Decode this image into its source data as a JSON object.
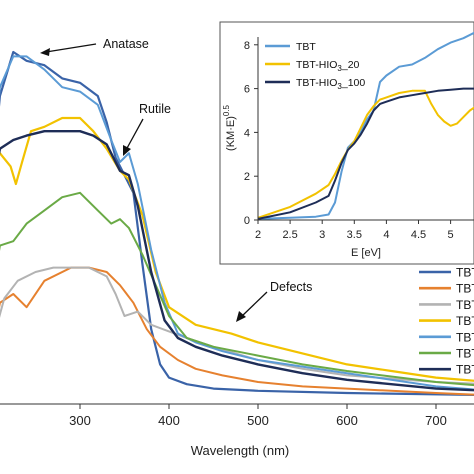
{
  "colors": {
    "dark_blue": "#3a63a8",
    "orange": "#e6812f",
    "gray": "#b3b3b3",
    "yellow": "#f2c200",
    "light_blue": "#5b9bd5",
    "green": "#6aaa46",
    "navy": "#1e2d57"
  },
  "chart_data": [
    {
      "type": "line",
      "xlabel": "Wavelength (nm)",
      "ylabel": "",
      "xlim": [
        200,
        760
      ],
      "ylim": [
        0,
        1
      ],
      "x_ticks": [
        "300",
        "400",
        "500",
        "600",
        "700"
      ],
      "x_tick_values": [
        300,
        400,
        500,
        600,
        700
      ],
      "grid": false,
      "legend": "right",
      "annotations": [
        {
          "text": "Anatase",
          "x": 228,
          "y": 0.805
        },
        {
          "text": "Rutile",
          "x": 355,
          "y": 0.56
        },
        {
          "text": "Defects",
          "x": 470,
          "y": 0.16
        }
      ],
      "series": [
        {
          "name": "TBT",
          "color": "dark_blue",
          "width": 2.2,
          "points": [
            [
              200,
              0.48
            ],
            [
              210,
              0.7
            ],
            [
              225,
              0.8
            ],
            [
              240,
              0.78
            ],
            [
              260,
              0.77
            ],
            [
              280,
              0.74
            ],
            [
              300,
              0.73
            ],
            [
              320,
              0.7
            ],
            [
              330,
              0.64
            ],
            [
              340,
              0.56
            ],
            [
              350,
              0.52
            ],
            [
              360,
              0.48
            ],
            [
              370,
              0.32
            ],
            [
              380,
              0.17
            ],
            [
              390,
              0.09
            ],
            [
              400,
              0.06
            ],
            [
              420,
              0.045
            ],
            [
              450,
              0.035
            ],
            [
              500,
              0.03
            ],
            [
              600,
              0.025
            ],
            [
              760,
              0.02
            ]
          ]
        },
        {
          "name": "TBT",
          "color": "orange",
          "width": 2.0,
          "points": [
            [
              200,
              0.12
            ],
            [
              210,
              0.23
            ],
            [
              225,
              0.25
            ],
            [
              240,
              0.22
            ],
            [
              260,
              0.28
            ],
            [
              290,
              0.31
            ],
            [
              310,
              0.31
            ],
            [
              330,
              0.3
            ],
            [
              345,
              0.27
            ],
            [
              360,
              0.23
            ],
            [
              375,
              0.17
            ],
            [
              390,
              0.13
            ],
            [
              410,
              0.1
            ],
            [
              430,
              0.08
            ],
            [
              460,
              0.065
            ],
            [
              500,
              0.05
            ],
            [
              550,
              0.04
            ],
            [
              600,
              0.035
            ],
            [
              700,
              0.025
            ],
            [
              760,
              0.02
            ]
          ]
        },
        {
          "name": "TBT",
          "color": "gray",
          "width": 2.0,
          "points": [
            [
              200,
              0.13
            ],
            [
              215,
              0.24
            ],
            [
              230,
              0.28
            ],
            [
              250,
              0.3
            ],
            [
              270,
              0.31
            ],
            [
              290,
              0.31
            ],
            [
              310,
              0.31
            ],
            [
              330,
              0.29
            ],
            [
              340,
              0.25
            ],
            [
              350,
              0.2
            ],
            [
              365,
              0.21
            ],
            [
              380,
              0.18
            ],
            [
              400,
              0.165
            ],
            [
              420,
              0.15
            ],
            [
              450,
              0.13
            ],
            [
              500,
              0.1
            ],
            [
              550,
              0.08
            ],
            [
              600,
              0.065
            ],
            [
              700,
              0.05
            ],
            [
              760,
              0.045
            ]
          ]
        },
        {
          "name": "TBT",
          "color": "yellow",
          "width": 2.2,
          "points": [
            [
              200,
              0.56
            ],
            [
              210,
              0.57
            ],
            [
              222,
              0.54
            ],
            [
              228,
              0.5
            ],
            [
              235,
              0.55
            ],
            [
              245,
              0.62
            ],
            [
              260,
              0.63
            ],
            [
              280,
              0.65
            ],
            [
              300,
              0.65
            ],
            [
              315,
              0.62
            ],
            [
              330,
              0.58
            ],
            [
              345,
              0.53
            ],
            [
              355,
              0.51
            ],
            [
              370,
              0.43
            ],
            [
              385,
              0.3
            ],
            [
              400,
              0.22
            ],
            [
              430,
              0.18
            ],
            [
              470,
              0.16
            ],
            [
              500,
              0.14
            ],
            [
              550,
              0.115
            ],
            [
              600,
              0.09
            ],
            [
              650,
              0.075
            ],
            [
              700,
              0.06
            ],
            [
              760,
              0.05
            ]
          ]
        },
        {
          "name": "TBT",
          "color": "light_blue",
          "width": 2.0,
          "points": [
            [
              200,
              0.52
            ],
            [
              210,
              0.72
            ],
            [
              225,
              0.79
            ],
            [
              240,
              0.79
            ],
            [
              260,
              0.76
            ],
            [
              280,
              0.72
            ],
            [
              300,
              0.71
            ],
            [
              320,
              0.68
            ],
            [
              335,
              0.6
            ],
            [
              345,
              0.55
            ],
            [
              355,
              0.57
            ],
            [
              365,
              0.5
            ],
            [
              380,
              0.35
            ],
            [
              395,
              0.23
            ],
            [
              410,
              0.16
            ],
            [
              430,
              0.14
            ],
            [
              460,
              0.12
            ],
            [
              500,
              0.1
            ],
            [
              550,
              0.085
            ],
            [
              600,
              0.07
            ],
            [
              700,
              0.04
            ],
            [
              760,
              0.03
            ]
          ]
        },
        {
          "name": "TBT",
          "color": "green",
          "width": 2.0,
          "points": [
            [
              200,
              0.24
            ],
            [
              210,
              0.36
            ],
            [
              225,
              0.37
            ],
            [
              240,
              0.41
            ],
            [
              260,
              0.44
            ],
            [
              280,
              0.47
            ],
            [
              300,
              0.48
            ],
            [
              320,
              0.44
            ],
            [
              335,
              0.41
            ],
            [
              345,
              0.42
            ],
            [
              355,
              0.4
            ],
            [
              370,
              0.34
            ],
            [
              385,
              0.27
            ],
            [
              400,
              0.2
            ],
            [
              420,
              0.15
            ],
            [
              450,
              0.13
            ],
            [
              500,
              0.11
            ],
            [
              550,
              0.09
            ],
            [
              600,
              0.075
            ],
            [
              700,
              0.05
            ],
            [
              760,
              0.04
            ]
          ]
        },
        {
          "name": "TBT",
          "color": "navy",
          "width": 2.4,
          "points": [
            [
              200,
              0.47
            ],
            [
              210,
              0.58
            ],
            [
              225,
              0.6
            ],
            [
              240,
              0.61
            ],
            [
              260,
              0.62
            ],
            [
              280,
              0.62
            ],
            [
              300,
              0.62
            ],
            [
              315,
              0.61
            ],
            [
              330,
              0.59
            ],
            [
              345,
              0.53
            ],
            [
              355,
              0.52
            ],
            [
              365,
              0.45
            ],
            [
              380,
              0.3
            ],
            [
              395,
              0.19
            ],
            [
              410,
              0.15
            ],
            [
              430,
              0.13
            ],
            [
              460,
              0.11
            ],
            [
              500,
              0.09
            ],
            [
              550,
              0.07
            ],
            [
              600,
              0.055
            ],
            [
              700,
              0.035
            ],
            [
              760,
              0.03
            ]
          ]
        }
      ]
    },
    {
      "type": "line",
      "xlabel": "E [eV]",
      "ylabel": "(KM·E)0.5",
      "ylabel_main": "(KM·E)",
      "ylabel_sup": "0.5",
      "xlim": [
        2,
        5.4
      ],
      "ylim": [
        0,
        9
      ],
      "x_ticks": [
        "2",
        "2.5",
        "3",
        "3.5",
        "4",
        "4.5",
        "5"
      ],
      "x_tick_values": [
        2,
        2.5,
        3,
        3.5,
        4,
        4.5,
        5
      ],
      "y_ticks": [
        "0",
        "2",
        "4",
        "6",
        "8"
      ],
      "y_tick_values": [
        0,
        2,
        4,
        6,
        8
      ],
      "grid": false,
      "legend": "top-left",
      "series": [
        {
          "name": "TBT",
          "color": "light_blue",
          "width": 2.0,
          "points": [
            [
              2,
              0.05
            ],
            [
              2.5,
              0.1
            ],
            [
              2.9,
              0.15
            ],
            [
              3.1,
              0.25
            ],
            [
              3.2,
              0.8
            ],
            [
              3.3,
              2.2
            ],
            [
              3.4,
              3.3
            ],
            [
              3.5,
              3.6
            ],
            [
              3.6,
              4.0
            ],
            [
              3.7,
              4.6
            ],
            [
              3.8,
              5.0
            ],
            [
              3.9,
              6.3
            ],
            [
              4.0,
              6.6
            ],
            [
              4.2,
              7.0
            ],
            [
              4.4,
              7.1
            ],
            [
              4.6,
              7.4
            ],
            [
              4.8,
              7.8
            ],
            [
              5.0,
              8.1
            ],
            [
              5.2,
              8.3
            ],
            [
              5.4,
              8.6
            ]
          ]
        },
        {
          "name": "TBT-HIO3_20",
          "color": "yellow",
          "width": 2.0,
          "points": [
            [
              2,
              0.1
            ],
            [
              2.5,
              0.6
            ],
            [
              2.9,
              1.2
            ],
            [
              3.1,
              1.6
            ],
            [
              3.2,
              2.1
            ],
            [
              3.3,
              2.7
            ],
            [
              3.4,
              3.2
            ],
            [
              3.5,
              3.6
            ],
            [
              3.6,
              4.2
            ],
            [
              3.7,
              4.8
            ],
            [
              3.8,
              5.2
            ],
            [
              3.9,
              5.5
            ],
            [
              4.0,
              5.6
            ],
            [
              4.2,
              5.8
            ],
            [
              4.4,
              5.9
            ],
            [
              4.6,
              5.9
            ],
            [
              4.7,
              5.3
            ],
            [
              4.8,
              4.8
            ],
            [
              4.9,
              4.5
            ],
            [
              5.0,
              4.3
            ],
            [
              5.1,
              4.4
            ],
            [
              5.2,
              4.7
            ],
            [
              5.3,
              5.0
            ],
            [
              5.4,
              5.2
            ]
          ]
        },
        {
          "name": "TBT-HIO3_100",
          "color": "navy",
          "width": 2.0,
          "points": [
            [
              2,
              0.05
            ],
            [
              2.5,
              0.35
            ],
            [
              2.9,
              0.8
            ],
            [
              3.1,
              1.1
            ],
            [
              3.2,
              1.8
            ],
            [
              3.3,
              2.6
            ],
            [
              3.4,
              3.2
            ],
            [
              3.5,
              3.5
            ],
            [
              3.6,
              3.9
            ],
            [
              3.7,
              4.4
            ],
            [
              3.8,
              5.0
            ],
            [
              3.9,
              5.3
            ],
            [
              4.0,
              5.4
            ],
            [
              4.2,
              5.6
            ],
            [
              4.4,
              5.7
            ],
            [
              4.6,
              5.8
            ],
            [
              4.8,
              5.9
            ],
            [
              5.0,
              5.95
            ],
            [
              5.2,
              6.0
            ],
            [
              5.4,
              6.0
            ]
          ]
        }
      ]
    }
  ],
  "legend_main": {
    "entries": [
      {
        "label": "TBT",
        "color": "dark_blue"
      },
      {
        "label": "TBT",
        "color": "orange"
      },
      {
        "label": "TBT",
        "color": "gray"
      },
      {
        "label": "TBT",
        "color": "yellow"
      },
      {
        "label": "TBT",
        "color": "light_blue"
      },
      {
        "label": "TBT",
        "color": "green"
      },
      {
        "label": "TBT",
        "color": "navy"
      }
    ]
  },
  "legend_inset": {
    "entries": [
      {
        "label": "TBT",
        "sub": "",
        "tail": "",
        "color": "light_blue"
      },
      {
        "label": "TBT-HIO",
        "sub": "3",
        "tail": "_20",
        "color": "yellow"
      },
      {
        "label": "TBT-HIO",
        "sub": "3",
        "tail": "_100",
        "color": "navy"
      }
    ]
  }
}
